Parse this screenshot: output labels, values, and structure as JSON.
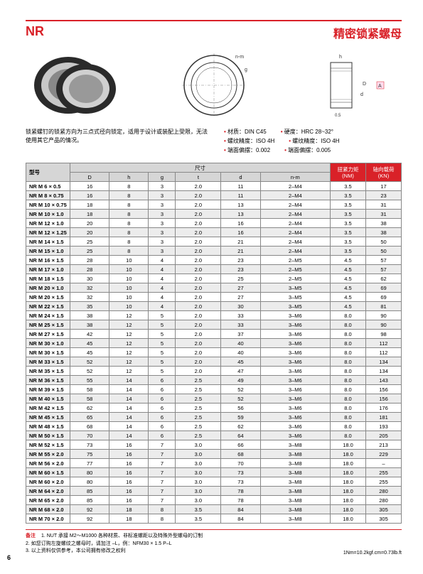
{
  "header": {
    "code": "NR",
    "title": "精密锁紧螺母"
  },
  "description": "锁紧螺钉的锁紧方向为三点式径向锁定，适用于设计或装配上受限，无法使用其它产品的情况。",
  "specs": [
    {
      "left": "材质：DIN C45",
      "right": "硬度：HRC 28~32°"
    },
    {
      "left": "螺纹精度：ISO 4H",
      "right": "螺纹精度：ISO 4H"
    },
    {
      "left": "端面偏摆：0.002",
      "right": "端面偏摆：0.005"
    }
  ],
  "table": {
    "headers": {
      "model": "型号",
      "dims": "尺寸",
      "torque": "扭紧力矩\n(NM)",
      "load": "轴向载荷\n(KN)",
      "cols": [
        "D",
        "h",
        "g",
        "t",
        "d",
        "n-m"
      ]
    },
    "rows": [
      [
        "NR M 6 × 0.5",
        "16",
        "8",
        "3",
        "2.0",
        "11",
        "2–M4",
        "3.5",
        "17"
      ],
      [
        "NR M 8 × 0.75",
        "16",
        "8",
        "3",
        "2.0",
        "11",
        "2–M4",
        "3.5",
        "23"
      ],
      [
        "NR M 10 × 0.75",
        "18",
        "8",
        "3",
        "2.0",
        "13",
        "2–M4",
        "3.5",
        "31"
      ],
      [
        "NR M 10 × 1.0",
        "18",
        "8",
        "3",
        "2.0",
        "13",
        "2–M4",
        "3.5",
        "31"
      ],
      [
        "NR M 12 × 1.0",
        "20",
        "8",
        "3",
        "2.0",
        "16",
        "2–M4",
        "3.5",
        "38"
      ],
      [
        "NR M 12 × 1.25",
        "20",
        "8",
        "3",
        "2.0",
        "16",
        "2–M4",
        "3.5",
        "38"
      ],
      [
        "NR M 14 × 1.5",
        "25",
        "8",
        "3",
        "2.0",
        "21",
        "2–M4",
        "3.5",
        "50"
      ],
      [
        "NR M 15 × 1.0",
        "25",
        "8",
        "3",
        "2.0",
        "21",
        "2–M4",
        "3.5",
        "50"
      ],
      [
        "NR M 16 × 1.5",
        "28",
        "10",
        "4",
        "2.0",
        "23",
        "2–M5",
        "4.5",
        "57"
      ],
      [
        "NR M 17 × 1.0",
        "28",
        "10",
        "4",
        "2.0",
        "23",
        "2–M5",
        "4.5",
        "57"
      ],
      [
        "NR M 18 × 1.5",
        "30",
        "10",
        "4",
        "2.0",
        "25",
        "2–M5",
        "4.5",
        "62"
      ],
      [
        "NR M 20 × 1.0",
        "32",
        "10",
        "4",
        "2.0",
        "27",
        "3–M5",
        "4.5",
        "69"
      ],
      [
        "NR M 20 × 1.5",
        "32",
        "10",
        "4",
        "2.0",
        "27",
        "3–M5",
        "4.5",
        "69"
      ],
      [
        "NR M 22 × 1.5",
        "35",
        "10",
        "4",
        "2.0",
        "30",
        "3–M5",
        "4.5",
        "81"
      ],
      [
        "NR M 24 × 1.5",
        "38",
        "12",
        "5",
        "2.0",
        "33",
        "3–M6",
        "8.0",
        "90"
      ],
      [
        "NR M 25 × 1.5",
        "38",
        "12",
        "5",
        "2.0",
        "33",
        "3–M6",
        "8.0",
        "90"
      ],
      [
        "NR M 27 × 1.5",
        "42",
        "12",
        "5",
        "2.0",
        "37",
        "3–M6",
        "8.0",
        "98"
      ],
      [
        "NR M 30 × 1.0",
        "45",
        "12",
        "5",
        "2.0",
        "40",
        "3–M6",
        "8.0",
        "112"
      ],
      [
        "NR M 30 × 1.5",
        "45",
        "12",
        "5",
        "2.0",
        "40",
        "3–M6",
        "8.0",
        "112"
      ],
      [
        "NR M 33 × 1.5",
        "52",
        "12",
        "5",
        "2.0",
        "45",
        "3–M6",
        "8.0",
        "134"
      ],
      [
        "NR M 35 × 1.5",
        "52",
        "12",
        "5",
        "2.0",
        "47",
        "3–M6",
        "8.0",
        "134"
      ],
      [
        "NR M 36 × 1.5",
        "55",
        "14",
        "6",
        "2.5",
        "49",
        "3–M6",
        "8.0",
        "143"
      ],
      [
        "NR M 39 × 1.5",
        "58",
        "14",
        "6",
        "2.5",
        "52",
        "3–M6",
        "8.0",
        "156"
      ],
      [
        "NR M 40 × 1.5",
        "58",
        "14",
        "6",
        "2.5",
        "52",
        "3–M6",
        "8.0",
        "156"
      ],
      [
        "NR M 42 × 1.5",
        "62",
        "14",
        "6",
        "2.5",
        "56",
        "3–M6",
        "8.0",
        "176"
      ],
      [
        "NR M 45 × 1.5",
        "65",
        "14",
        "6",
        "2.5",
        "59",
        "3–M6",
        "8.0",
        "181"
      ],
      [
        "NR M 48 × 1.5",
        "68",
        "14",
        "6",
        "2.5",
        "62",
        "3–M6",
        "8.0",
        "193"
      ],
      [
        "NR M 50 × 1.5",
        "70",
        "14",
        "6",
        "2.5",
        "64",
        "3–M6",
        "8.0",
        "205"
      ],
      [
        "NR M 52 × 1.5",
        "73",
        "16",
        "7",
        "3.0",
        "66",
        "3–M8",
        "18.0",
        "213"
      ],
      [
        "NR M 55 × 2.0",
        "75",
        "16",
        "7",
        "3.0",
        "68",
        "3–M8",
        "18.0",
        "229"
      ],
      [
        "NR M 56 × 2.0",
        "77",
        "16",
        "7",
        "3.0",
        "70",
        "3–M8",
        "18.0",
        "–"
      ],
      [
        "NR M 60 × 1.5",
        "80",
        "16",
        "7",
        "3.0",
        "73",
        "3–M8",
        "18.0",
        "255"
      ],
      [
        "NR M 60 × 2.0",
        "80",
        "16",
        "7",
        "3.0",
        "73",
        "3–M8",
        "18.0",
        "255"
      ],
      [
        "NR M 64 × 2.0",
        "85",
        "16",
        "7",
        "3.0",
        "78",
        "3–M8",
        "18.0",
        "280"
      ],
      [
        "NR M 65 × 2.0",
        "85",
        "16",
        "7",
        "3.0",
        "78",
        "3–M8",
        "18.0",
        "280"
      ],
      [
        "NR M 68 × 2.0",
        "92",
        "18",
        "8",
        "3.5",
        "84",
        "3–M8",
        "18.0",
        "305"
      ],
      [
        "NR M 70 × 2.0",
        "92",
        "18",
        "8",
        "3.5",
        "84",
        "3–M8",
        "18.0",
        "305"
      ]
    ]
  },
  "notes": {
    "label": "备注",
    "lines": [
      "1. NUT 承接 M2～M1000 各种材质、非标准螺距以及特殊外型螺母的订制",
      "2. 如您订购左旋螺纹之螺母时，请加注 –L，例：NFM30 × 1.5 P–L",
      "3. 以上资料仅供参考，本公司拥有修改之权利"
    ],
    "conversion": "1Nm=10.2kgf.cm=0.73lb.ft"
  },
  "page_number": "6"
}
